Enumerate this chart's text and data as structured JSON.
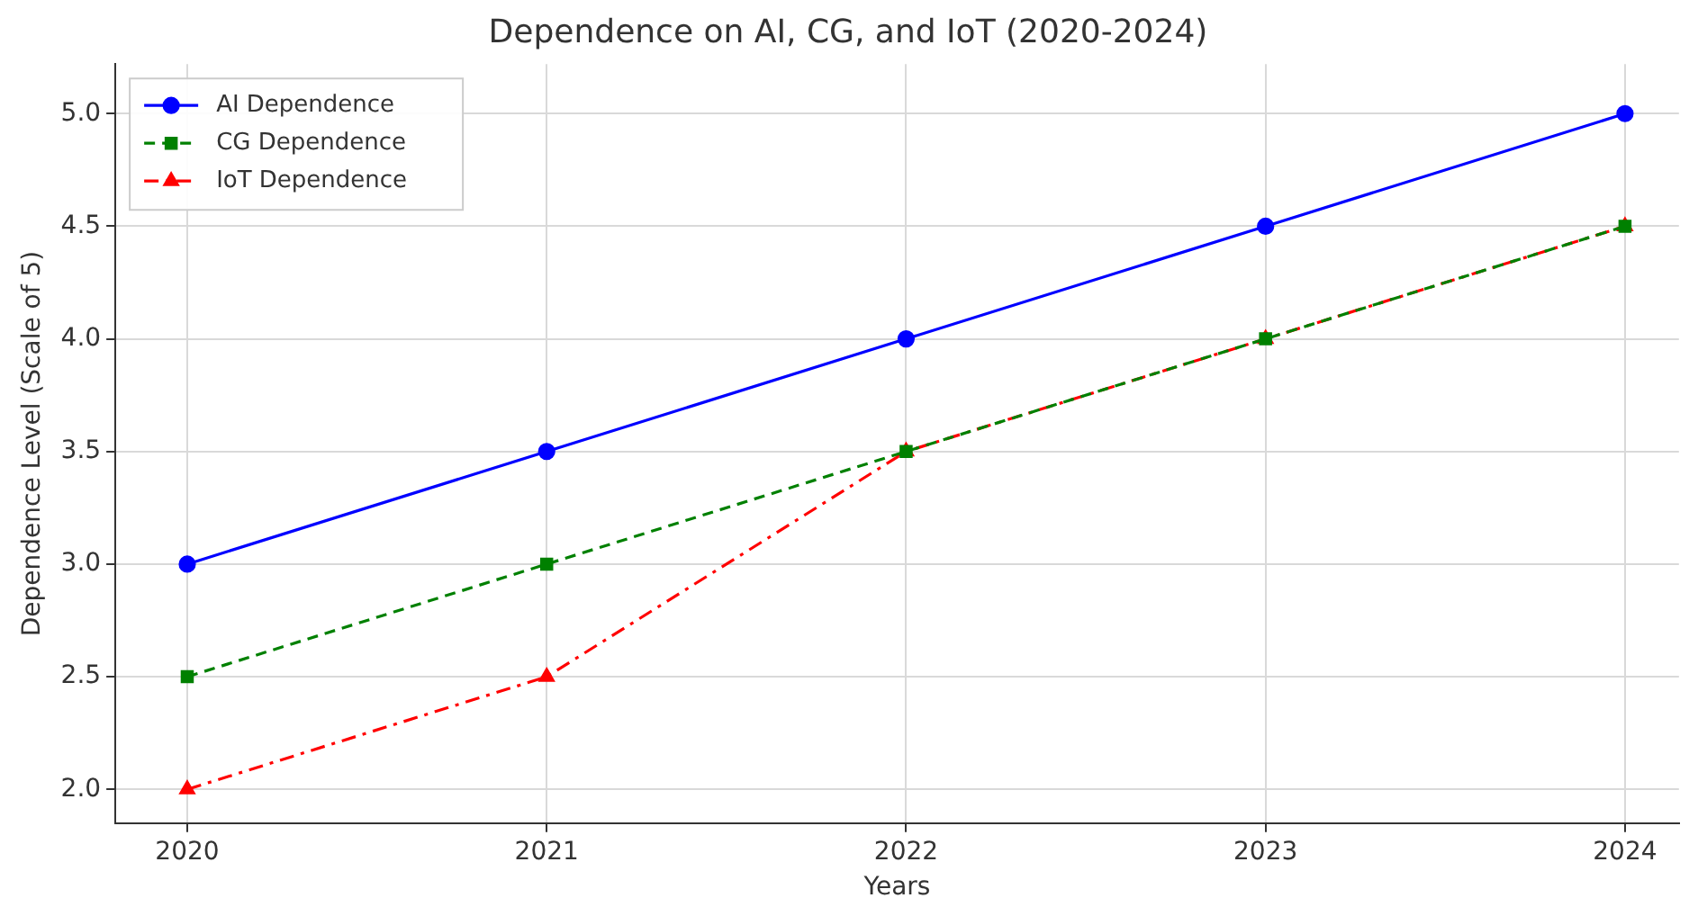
{
  "chart_data": {
    "type": "line",
    "title": "Dependence on AI, CG, and IoT (2020-2024)",
    "xlabel": "Years",
    "ylabel": "Dependence Level (Scale of 5)",
    "x": [
      2020,
      2021,
      2022,
      2023,
      2024
    ],
    "series": [
      {
        "name": "AI Dependence",
        "color": "#0000ff",
        "values": [
          3.0,
          3.5,
          4.0,
          4.5,
          5.0
        ],
        "marker": "circle",
        "line_style": "solid"
      },
      {
        "name": "CG Dependence",
        "color": "#008000",
        "values": [
          2.5,
          3.0,
          3.5,
          4.0,
          4.5
        ],
        "marker": "square",
        "line_style": "dashed"
      },
      {
        "name": "IoT Dependence",
        "color": "#ff0000",
        "values": [
          2.0,
          2.5,
          3.5,
          4.0,
          4.5
        ],
        "marker": "triangle",
        "line_style": "dashdot"
      }
    ],
    "xlim": [
      2019.8,
      2024.15
    ],
    "xticks": [
      2020,
      2021,
      2022,
      2023,
      2024
    ],
    "ylim": [
      1.85,
      5.22
    ],
    "yticks": [
      {
        "value": 2.0,
        "label": "2.0"
      },
      {
        "value": 2.5,
        "label": "2.5"
      },
      {
        "value": 3.0,
        "label": "3.0"
      },
      {
        "value": 3.5,
        "label": "3.5"
      },
      {
        "value": 4.0,
        "label": "4.0"
      },
      {
        "value": 4.5,
        "label": "4.5"
      },
      {
        "value": 5.0,
        "label": "5.0"
      }
    ],
    "grid": true,
    "legend": "top left"
  }
}
